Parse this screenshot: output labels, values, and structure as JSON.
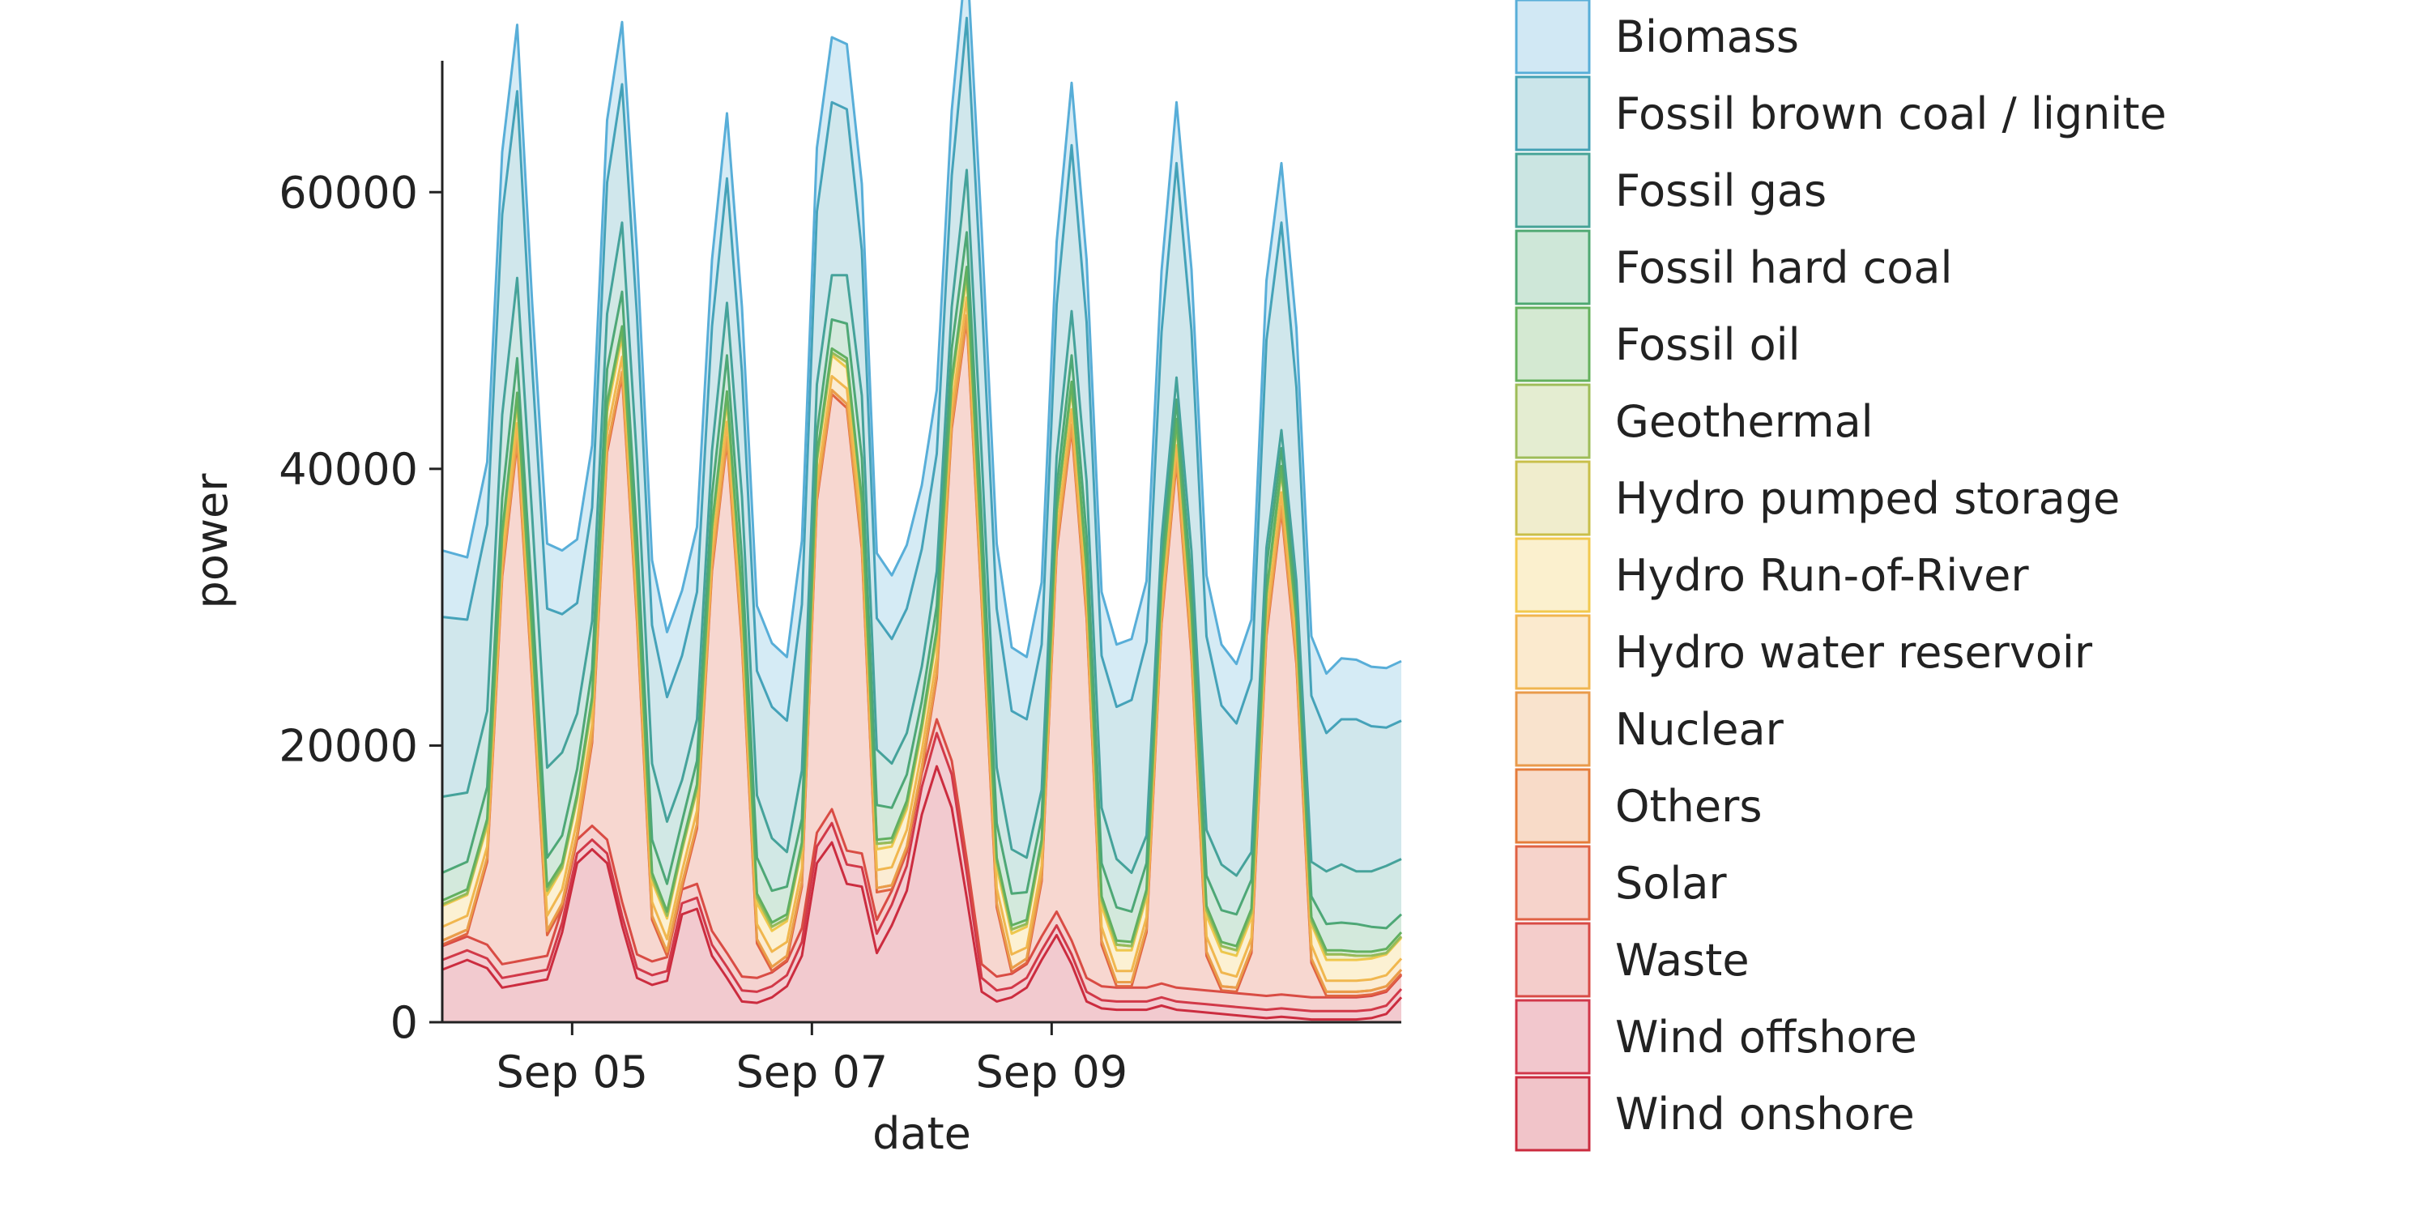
{
  "chart_data": {
    "type": "area",
    "stacked": true,
    "xlabel": "date",
    "ylabel": "power",
    "ylim": [
      0,
      69500
    ],
    "xlim": [
      "2023-09-03 22:00",
      "2023-09-11 22:00"
    ],
    "yticks": [
      0,
      20000,
      40000,
      60000
    ],
    "ytick_labels": [
      "0",
      "20000",
      "40000",
      "60000"
    ],
    "xticks": [
      "2023-09-05 00:00",
      "2023-09-07 00:00",
      "2023-09-09 00:00"
    ],
    "xtick_labels": [
      "Sep 05",
      "Sep 07",
      "Sep 09"
    ],
    "legend_position": "outside-right",
    "grid": false,
    "x": [
      "2023-09-03 22:00",
      "2023-09-04 03:00",
      "2023-09-04 07:00",
      "2023-09-04 10:00",
      "2023-09-04 13:00",
      "2023-09-04 16:00",
      "2023-09-04 19:00",
      "2023-09-04 22:00",
      "2023-09-05 01:00",
      "2023-09-05 04:00",
      "2023-09-05 07:00",
      "2023-09-05 10:00",
      "2023-09-05 13:00",
      "2023-09-05 16:00",
      "2023-09-05 19:00",
      "2023-09-05 22:00",
      "2023-09-06 01:00",
      "2023-09-06 04:00",
      "2023-09-06 07:00",
      "2023-09-06 10:00",
      "2023-09-06 13:00",
      "2023-09-06 16:00",
      "2023-09-06 19:00",
      "2023-09-06 22:00",
      "2023-09-07 01:00",
      "2023-09-07 04:00",
      "2023-09-07 07:00",
      "2023-09-07 10:00",
      "2023-09-07 13:00",
      "2023-09-07 16:00",
      "2023-09-07 19:00",
      "2023-09-07 22:00",
      "2023-09-08 01:00",
      "2023-09-08 04:00",
      "2023-09-08 07:00",
      "2023-09-08 10:00",
      "2023-09-08 13:00",
      "2023-09-08 16:00",
      "2023-09-08 19:00",
      "2023-09-08 22:00",
      "2023-09-09 01:00",
      "2023-09-09 04:00",
      "2023-09-09 07:00",
      "2023-09-09 10:00",
      "2023-09-09 13:00",
      "2023-09-09 16:00",
      "2023-09-09 19:00",
      "2023-09-09 22:00",
      "2023-09-10 01:00",
      "2023-09-10 04:00",
      "2023-09-10 07:00",
      "2023-09-10 10:00",
      "2023-09-10 13:00",
      "2023-09-10 16:00",
      "2023-09-10 19:00",
      "2023-09-10 22:00",
      "2023-09-11 01:00",
      "2023-09-11 04:00",
      "2023-09-11 07:00",
      "2023-09-11 10:00",
      "2023-09-11 13:00",
      "2023-09-11 16:00",
      "2023-09-11 19:00",
      "2023-09-11 22:00"
    ],
    "series": [
      {
        "name": "Wind onshore",
        "color": "#cb2b3e",
        "values": [
          3800,
          4500,
          3900,
          2500,
          2700,
          2900,
          3100,
          6500,
          11500,
          12500,
          11500,
          7000,
          3200,
          2700,
          3000,
          7800,
          8200,
          4800,
          3200,
          1500,
          1400,
          1800,
          2600,
          4800,
          11500,
          13000,
          10000,
          9800,
          5000,
          7000,
          9500,
          15000,
          18500,
          15500,
          9000,
          2200,
          1500,
          1800,
          2500,
          4500,
          6300,
          4200,
          1500,
          1000,
          900,
          900,
          900,
          1200,
          900,
          800,
          700,
          600,
          500,
          400,
          300,
          400,
          300,
          200,
          200,
          200,
          200,
          300,
          600,
          1800
        ]
      },
      {
        "name": "Wind offshore",
        "color": "#d1374a",
        "values": [
          700,
          700,
          700,
          700,
          700,
          700,
          700,
          700,
          700,
          700,
          700,
          700,
          700,
          700,
          700,
          800,
          800,
          800,
          800,
          800,
          800,
          800,
          800,
          1000,
          1200,
          1400,
          1400,
          1400,
          1400,
          1500,
          1800,
          2000,
          2400,
          2400,
          1800,
          1000,
          800,
          700,
          700,
          700,
          700,
          700,
          700,
          600,
          600,
          600,
          600,
          600,
          600,
          600,
          600,
          600,
          600,
          600,
          600,
          600,
          600,
          600,
          600,
          600,
          600,
          600,
          600,
          600
        ]
      },
      {
        "name": "Waste",
        "color": "#d84a45",
        "values": [
          1000,
          1000,
          1000,
          1000,
          1000,
          1000,
          1000,
          1000,
          1000,
          1000,
          1000,
          1000,
          1000,
          1000,
          1000,
          1000,
          1000,
          1000,
          1000,
          1000,
          1000,
          1000,
          1000,
          1000,
          1000,
          1000,
          1000,
          1000,
          1000,
          1000,
          1000,
          1000,
          1000,
          1000,
          1000,
          1000,
          1000,
          1000,
          1000,
          1000,
          1000,
          1000,
          1000,
          1000,
          1000,
          1000,
          1000,
          1000,
          1000,
          1000,
          1000,
          1000,
          1000,
          1000,
          1000,
          1000,
          1000,
          1000,
          1000,
          1000,
          1000,
          1000,
          1000,
          1000
        ]
      },
      {
        "name": "Solar",
        "color": "#e06143",
        "values": [
          100,
          200,
          6000,
          28000,
          37500,
          20000,
          1500,
          100,
          100,
          6000,
          28000,
          38000,
          24000,
          3000,
          100,
          100,
          4000,
          26000,
          37000,
          24000,
          2500,
          100,
          100,
          3000,
          24000,
          30000,
          32000,
          22000,
          2000,
          100,
          100,
          100,
          3000,
          24000,
          39000,
          26000,
          5000,
          100,
          100,
          4000,
          26000,
          37000,
          26000,
          3000,
          100,
          100,
          4000,
          26000,
          38000,
          24000,
          2500,
          100,
          100,
          3000,
          26000,
          35000,
          24000,
          2500,
          100,
          100,
          100,
          100,
          100,
          100
        ]
      },
      {
        "name": "Others",
        "color": "#e57c3a",
        "values": [
          300,
          300,
          300,
          300,
          300,
          300,
          300,
          300,
          300,
          300,
          300,
          300,
          300,
          300,
          300,
          300,
          300,
          300,
          300,
          300,
          300,
          300,
          300,
          300,
          300,
          300,
          300,
          300,
          300,
          300,
          300,
          300,
          300,
          300,
          300,
          300,
          300,
          300,
          300,
          300,
          300,
          300,
          300,
          300,
          300,
          300,
          300,
          300,
          300,
          300,
          300,
          300,
          300,
          300,
          300,
          300,
          300,
          300,
          300,
          300,
          300,
          300,
          300,
          300
        ]
      },
      {
        "name": "Nuclear",
        "color": "#e99a4a",
        "values": [
          0,
          0,
          0,
          0,
          0,
          0,
          0,
          0,
          0,
          0,
          0,
          0,
          0,
          0,
          0,
          0,
          0,
          0,
          0,
          0,
          0,
          0,
          0,
          0,
          0,
          0,
          0,
          0,
          0,
          0,
          0,
          0,
          0,
          0,
          0,
          0,
          0,
          0,
          0,
          0,
          0,
          0,
          0,
          0,
          0,
          0,
          0,
          0,
          0,
          0,
          0,
          0,
          0,
          0,
          0,
          0,
          0,
          0,
          0,
          0,
          0,
          0,
          0,
          0
        ]
      },
      {
        "name": "Hydro water reservoir",
        "color": "#f0b54f",
        "values": [
          1000,
          1000,
          800,
          800,
          1100,
          1100,
          1100,
          1000,
          1000,
          1000,
          1100,
          1100,
          1100,
          1000,
          900,
          900,
          1000,
          1000,
          1100,
          1100,
          1100,
          1100,
          1000,
          1000,
          1000,
          1000,
          1100,
          1100,
          1300,
          1300,
          1200,
          1200,
          1200,
          1200,
          1300,
          1200,
          1100,
          1000,
          800,
          800,
          900,
          1100,
          1100,
          1000,
          800,
          800,
          800,
          800,
          900,
          1100,
          1100,
          1000,
          800,
          800,
          900,
          1000,
          1100,
          1000,
          800,
          800,
          800,
          800,
          800,
          800
        ]
      },
      {
        "name": "Hydro Run-of-River",
        "color": "#f2c94e",
        "values": [
          1500,
          1500,
          1500,
          1500,
          1500,
          1500,
          1500,
          1500,
          1500,
          1500,
          1500,
          1500,
          1500,
          1500,
          1500,
          1500,
          1500,
          1500,
          1500,
          1500,
          1500,
          1500,
          1500,
          1500,
          1500,
          1500,
          1500,
          1500,
          1500,
          1500,
          1500,
          1500,
          1500,
          1500,
          1500,
          1500,
          1500,
          1500,
          1500,
          1500,
          1500,
          1500,
          1500,
          1500,
          1500,
          1500,
          1500,
          1500,
          1500,
          1500,
          1500,
          1500,
          1500,
          1500,
          1500,
          1500,
          1500,
          1500,
          1500,
          1500,
          1500,
          1500,
          1500,
          1500
        ]
      },
      {
        "name": "Hydro pumped storage",
        "color": "#c9bf4a",
        "values": [
          100,
          100,
          200,
          300,
          400,
          400,
          300,
          100,
          100,
          200,
          400,
          400,
          400,
          300,
          200,
          100,
          100,
          200,
          400,
          400,
          400,
          300,
          200,
          100,
          100,
          200,
          400,
          400,
          400,
          300,
          300,
          200,
          200,
          300,
          400,
          400,
          400,
          300,
          200,
          100,
          100,
          200,
          400,
          400,
          400,
          300,
          200,
          100,
          100,
          200,
          400,
          400,
          400,
          300,
          200,
          100,
          100,
          200,
          400,
          400,
          300,
          200,
          100,
          100
        ]
      },
      {
        "name": "Geothermal",
        "color": "#9ebd59",
        "values": [
          0,
          0,
          0,
          0,
          0,
          0,
          0,
          0,
          0,
          0,
          0,
          0,
          0,
          0,
          0,
          0,
          0,
          0,
          0,
          0,
          0,
          0,
          0,
          0,
          0,
          0,
          0,
          0,
          0,
          0,
          0,
          0,
          0,
          0,
          0,
          0,
          0,
          0,
          0,
          0,
          0,
          0,
          0,
          0,
          0,
          0,
          0,
          0,
          0,
          0,
          0,
          0,
          0,
          0,
          0,
          0,
          0,
          0,
          0,
          0,
          0,
          0,
          0,
          0
        ]
      },
      {
        "name": "Fossil oil",
        "color": "#65b15d",
        "values": [
          300,
          300,
          300,
          300,
          300,
          300,
          300,
          300,
          300,
          300,
          300,
          300,
          300,
          300,
          300,
          300,
          300,
          300,
          300,
          300,
          300,
          300,
          300,
          300,
          300,
          300,
          300,
          300,
          300,
          300,
          300,
          300,
          300,
          300,
          300,
          300,
          300,
          300,
          300,
          300,
          300,
          300,
          300,
          300,
          300,
          300,
          300,
          300,
          300,
          300,
          300,
          300,
          300,
          300,
          300,
          300,
          300,
          300,
          300,
          300,
          300,
          300,
          300,
          300
        ]
      },
      {
        "name": "Fossil hard coal",
        "color": "#4fa872",
        "values": [
          2000,
          2000,
          2300,
          2500,
          2500,
          2400,
          2100,
          2000,
          1800,
          2000,
          2400,
          2500,
          2500,
          2400,
          2000,
          1700,
          1700,
          2200,
          2600,
          2600,
          2600,
          2300,
          2000,
          1700,
          1700,
          2100,
          2500,
          3000,
          2500,
          2200,
          1900,
          1600,
          1700,
          2200,
          2500,
          2500,
          2500,
          2300,
          2000,
          1600,
          1500,
          1900,
          2300,
          2400,
          2400,
          2200,
          1900,
          1500,
          1400,
          1800,
          2200,
          2300,
          2300,
          2100,
          1800,
          1300,
          1200,
          1500,
          1900,
          2000,
          2000,
          1800,
          1500,
          1300
        ]
      },
      {
        "name": "Fossil gas",
        "color": "#46a397",
        "values": [
          5500,
          5000,
          5500,
          6000,
          5800,
          6000,
          6500,
          6000,
          4000,
          3500,
          4000,
          5000,
          5500,
          5500,
          4500,
          3000,
          3000,
          3200,
          3800,
          4500,
          4500,
          3800,
          2500,
          3500,
          3500,
          3200,
          3500,
          4500,
          4000,
          3200,
          3000,
          2500,
          2500,
          3000,
          4500,
          4500,
          4000,
          3200,
          2500,
          2000,
          2300,
          3200,
          4000,
          4000,
          3500,
          2800,
          2000,
          1600,
          1600,
          2400,
          3300,
          3300,
          2800,
          2000,
          1400,
          1300,
          1500,
          2500,
          3800,
          4200,
          3800,
          4000,
          4500,
          4000
        ]
      },
      {
        "name": "Fossil brown coal / lignite",
        "color": "#43a1b5",
        "values": [
          13000,
          12500,
          13500,
          14500,
          13500,
          10800,
          11500,
          10000,
          8000,
          8200,
          9500,
          10000,
          10500,
          10000,
          9000,
          9000,
          9200,
          9000,
          9000,
          9000,
          9000,
          9500,
          9500,
          12000,
          12500,
          12500,
          12000,
          10500,
          9500,
          9000,
          9000,
          8500,
          8500,
          9500,
          11000,
          11500,
          11500,
          10000,
          10000,
          10500,
          11000,
          12000,
          11500,
          11000,
          11000,
          12500,
          14000,
          15000,
          15500,
          16000,
          14000,
          11500,
          11000,
          12500,
          15000,
          15000,
          14000,
          12000,
          10000,
          10500,
          11000,
          10500,
          10000,
          10000
        ]
      },
      {
        "name": "Biomass",
        "color": "#58aed8",
        "values": [
          4800,
          4500,
          4500,
          4500,
          4800,
          4600,
          4700,
          4600,
          4600,
          4500,
          4500,
          4500,
          4600,
          4700,
          4700,
          4700,
          4700,
          4800,
          4700,
          4700,
          4700,
          4600,
          4600,
          4600,
          4600,
          4700,
          4700,
          4800,
          4700,
          4600,
          4600,
          4600,
          4600,
          4700,
          4800,
          4800,
          4700,
          4600,
          4500,
          4500,
          4500,
          4500,
          4500,
          4600,
          4500,
          4400,
          4400,
          4400,
          4400,
          4400,
          4400,
          4400,
          4300,
          4300,
          4300,
          4300,
          4300,
          4300,
          4300,
          4400,
          4300,
          4300,
          4300,
          4300
        ]
      }
    ]
  }
}
